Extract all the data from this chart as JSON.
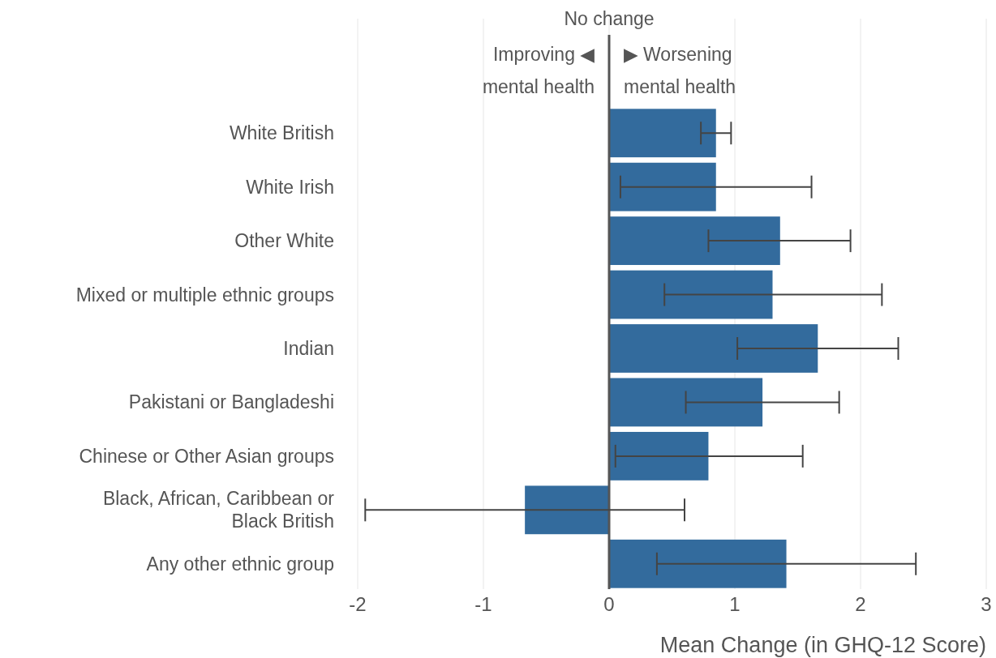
{
  "chart_data": {
    "type": "bar",
    "orientation": "horizontal",
    "xlabel": "Mean Change (in GHQ-12 Score)",
    "categories": [
      "White British",
      "White Irish",
      "Other White",
      "Mixed or multiple ethnic groups",
      "Indian",
      "Pakistani or Bangladeshi",
      "Chinese or Other Asian groups",
      "Black, African, Caribbean or Black British",
      "Any other ethnic group"
    ],
    "series": [
      {
        "color": "#336b9d",
        "values": [
          0.85,
          0.85,
          1.36,
          1.3,
          1.66,
          1.22,
          0.79,
          -0.67,
          1.41
        ],
        "errors": [
          [
            0.73,
            0.97
          ],
          [
            0.09,
            1.61
          ],
          [
            0.79,
            1.92
          ],
          [
            0.44,
            2.17
          ],
          [
            1.02,
            2.3
          ],
          [
            0.61,
            1.83
          ],
          [
            0.05,
            1.54
          ],
          [
            -1.94,
            0.6
          ],
          [
            0.38,
            2.44
          ]
        ]
      }
    ],
    "xlim": [
      -2,
      3
    ],
    "xticks": [
      -2,
      -1,
      0,
      1,
      2,
      3
    ],
    "grid": "x",
    "ref_lines": [
      {
        "axis": "x",
        "value": 0,
        "label": "No change",
        "color": "#555555"
      }
    ],
    "annotations": [
      "Improving ◀\nmental health",
      "▶ Worsening\nmental health"
    ]
  }
}
